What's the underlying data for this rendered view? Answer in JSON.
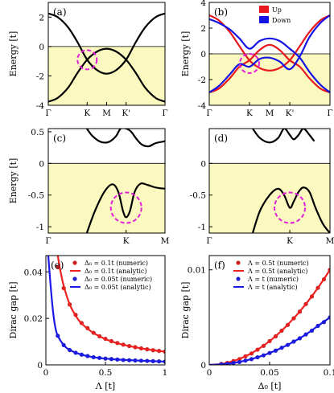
{
  "chart_data": [
    {
      "panel": "(a)",
      "type": "line",
      "ylabel": "Energy [t]",
      "xticks": [
        "Γ",
        "K",
        "M",
        "K'",
        "Γ"
      ],
      "yticks": [
        "2",
        "0",
        "-2",
        "-4"
      ],
      "ylim": [
        -4,
        3
      ],
      "xlim": [
        0,
        1
      ],
      "xtick_pos": [
        0,
        0.333,
        0.5,
        0.667,
        1
      ],
      "fermi_level": 0,
      "shade_below_fermi": true,
      "circle": {
        "x": 0.333,
        "y": -0.9
      },
      "series": [
        {
          "color": "#000000",
          "x": [
            0,
            0.08,
            0.17,
            0.25,
            0.333,
            0.417,
            0.5,
            0.583,
            0.667,
            0.75,
            0.83,
            0.92,
            1
          ],
          "y": [
            2.25,
            2.0,
            1.3,
            0.3,
            -0.9,
            -1.6,
            -1.85,
            -1.6,
            -0.9,
            0.3,
            1.3,
            2.0,
            2.25
          ]
        },
        {
          "color": "#000000",
          "x": [
            0,
            0.08,
            0.17,
            0.25,
            0.333,
            0.417,
            0.5,
            0.583,
            0.667,
            0.75,
            0.83,
            0.92,
            1
          ],
          "y": [
            -3.75,
            -3.5,
            -2.8,
            -1.8,
            -0.9,
            -0.35,
            -0.15,
            -0.35,
            -0.9,
            -1.8,
            -2.8,
            -3.5,
            -3.75
          ]
        }
      ]
    },
    {
      "panel": "(b)",
      "type": "line",
      "ylabel": "Energy [t]",
      "xticks": [
        "Γ",
        "K",
        "M",
        "K'",
        "Γ"
      ],
      "yticks": [
        "4",
        "2",
        "0",
        "-2",
        "-4"
      ],
      "ylim": [
        -4,
        4
      ],
      "xlim": [
        0,
        1
      ],
      "xtick_pos": [
        0,
        0.333,
        0.5,
        0.667,
        1
      ],
      "fermi_level": 0,
      "shade_below_fermi": true,
      "circle": {
        "x": 0.333,
        "y": -0.75
      },
      "legend": [
        {
          "name": "Up",
          "color": "#e8191c"
        },
        {
          "name": "Down",
          "color": "#1414e6"
        }
      ],
      "series": [
        {
          "color": "#e8191c",
          "x": [
            0,
            0.08,
            0.17,
            0.25,
            0.333,
            0.417,
            0.5,
            0.583,
            0.667,
            0.75,
            0.83,
            0.92,
            1
          ],
          "y": [
            3.0,
            2.6,
            1.7,
            0.6,
            -0.5,
            -1.1,
            -1.3,
            -1.1,
            -0.5,
            0.6,
            1.7,
            2.6,
            3.0
          ]
        },
        {
          "color": "#e8191c",
          "x": [
            0,
            0.08,
            0.17,
            0.25,
            0.333,
            0.417,
            0.5,
            0.583,
            0.667,
            0.75,
            0.83,
            0.92,
            1
          ],
          "y": [
            -3.0,
            -2.7,
            -1.9,
            -1.0,
            -0.5,
            0.3,
            0.7,
            0.3,
            -0.5,
            -1.0,
            -1.9,
            -2.7,
            -3.0
          ]
        },
        {
          "color": "#1414e6",
          "x": [
            0,
            0.08,
            0.17,
            0.25,
            0.333,
            0.417,
            0.5,
            0.583,
            0.667,
            0.75,
            0.83,
            0.92,
            1
          ],
          "y": [
            2.7,
            2.4,
            1.9,
            1.2,
            0.4,
            1.0,
            1.2,
            1.0,
            0.4,
            -0.3,
            -1.4,
            -2.4,
            -3.0
          ]
        },
        {
          "color": "#1414e6",
          "x": [
            0,
            0.08,
            0.17,
            0.25,
            0.333,
            0.417,
            0.5,
            0.583,
            0.667,
            0.75,
            0.83,
            0.92,
            1
          ],
          "y": [
            -3.0,
            -2.5,
            -1.6,
            -0.8,
            -1.0,
            -0.4,
            -0.3,
            -0.6,
            -1.2,
            -0.2,
            1.3,
            2.4,
            3.0
          ]
        }
      ]
    },
    {
      "panel": "(c)",
      "type": "line",
      "ylabel": "Energy [t]",
      "xticks": [
        "Γ",
        "K",
        "M"
      ],
      "yticks": [
        "0.5",
        "0",
        "-0.5",
        "-1"
      ],
      "ylim": [
        -1.1,
        0.55
      ],
      "xlim": [
        0,
        1
      ],
      "xtick_pos": [
        0,
        0.667,
        1
      ],
      "fermi_level": 0,
      "shade_below_fermi": true,
      "circle": {
        "x": 0.667,
        "y": -0.7
      },
      "series": [
        {
          "color": "#000000",
          "x": [
            0.33,
            0.38,
            0.45,
            0.52,
            0.58,
            0.62,
            0.667,
            0.71,
            0.75,
            0.8,
            0.86,
            0.92,
            1
          ],
          "y": [
            0.55,
            0.43,
            0.34,
            0.34,
            0.43,
            0.55,
            0.55,
            0.5,
            0.4,
            0.3,
            0.27,
            0.32,
            0.35
          ]
        },
        {
          "color": "#000000",
          "x": [
            0.33,
            0.4,
            0.48,
            0.55,
            0.6,
            0.64,
            0.667,
            0.7,
            0.74,
            0.79,
            0.85,
            0.92,
            1
          ],
          "y": [
            -1.1,
            -0.75,
            -0.45,
            -0.33,
            -0.45,
            -0.75,
            -0.85,
            -0.75,
            -0.45,
            -0.32,
            -0.34,
            -0.38,
            -0.4
          ]
        }
      ]
    },
    {
      "panel": "(d)",
      "type": "line",
      "ylabel": "",
      "xticks": [
        "Γ",
        "K",
        "M"
      ],
      "yticks": [
        "0",
        "-0.5",
        "-1"
      ],
      "ylim": [
        -1.1,
        0.55
      ],
      "xlim": [
        0,
        1
      ],
      "xtick_pos": [
        0,
        0.667,
        1
      ],
      "fermi_level": 0,
      "shade_below_fermi": true,
      "circle": {
        "x": 0.667,
        "y": -0.7
      },
      "series": [
        {
          "color": "#000000",
          "x": [
            0.36,
            0.42,
            0.5,
            0.57,
            0.62,
            0.667,
            0.7,
            0.74,
            0.78,
            0.83,
            0.87
          ],
          "y": [
            0.55,
            0.4,
            0.33,
            0.4,
            0.55,
            0.45,
            0.38,
            0.45,
            0.55,
            0.45,
            0.35
          ]
        },
        {
          "color": "#000000",
          "x": [
            0.36,
            0.42,
            0.5,
            0.57,
            0.62,
            0.667,
            0.7,
            0.74,
            0.78,
            0.83,
            0.88,
            0.94,
            1
          ],
          "y": [
            -1.1,
            -0.75,
            -0.5,
            -0.4,
            -0.5,
            -0.7,
            -0.6,
            -0.45,
            -0.38,
            -0.45,
            -0.7,
            -0.95,
            -1.1
          ]
        }
      ]
    },
    {
      "panel": "(e)",
      "type": "scatter",
      "xlabel": "Λ [t]",
      "ylabel": "Dirac gap [t]",
      "xlim": [
        0,
        1
      ],
      "ylim": [
        0,
        0.047
      ],
      "xticks": [
        "0",
        "0.5",
        "1"
      ],
      "yticks": [
        "0",
        "0.02",
        "0.04"
      ],
      "legend": [
        {
          "name": "Δ₀ = 0.1t (numeric)",
          "color": "#cc2222",
          "kind": "dot"
        },
        {
          "name": "Δ₀ = 0.1t (analytic)",
          "color": "#ee2020",
          "kind": "line"
        },
        {
          "name": "Δ₀ = 0.05t (numeric)",
          "color": "#2222cc",
          "kind": "dot"
        },
        {
          "name": "Δ₀ = 0.05t (analytic)",
          "color": "#1a1ae6",
          "kind": "line"
        }
      ],
      "series": [
        {
          "name": "Δ₀ = 0.1t (numeric)",
          "color": "#cc2222",
          "kind": "dot",
          "x": [
            0.1,
            0.15,
            0.2,
            0.25,
            0.3,
            0.35,
            0.4,
            0.45,
            0.5,
            0.55,
            0.6,
            0.65,
            0.7,
            0.75,
            0.8,
            0.85,
            0.9,
            0.95,
            1.0
          ],
          "y": [
            0.042,
            0.033,
            0.026,
            0.0215,
            0.018,
            0.0158,
            0.0138,
            0.0123,
            0.0112,
            0.0102,
            0.0094,
            0.0087,
            0.0081,
            0.0076,
            0.0071,
            0.0067,
            0.0063,
            0.006,
            0.0057
          ]
        },
        {
          "name": "Δ₀ = 0.1t (analytic)",
          "color": "#ee2020",
          "kind": "line",
          "x": [
            0.1,
            0.12,
            0.15,
            0.2,
            0.25,
            0.3,
            0.4,
            0.5,
            0.6,
            0.7,
            0.8,
            0.9,
            1.0
          ],
          "y": [
            0.047,
            0.041,
            0.034,
            0.026,
            0.0212,
            0.0178,
            0.0137,
            0.0111,
            0.0093,
            0.0081,
            0.0071,
            0.0063,
            0.0057
          ]
        },
        {
          "name": "Δ₀ = 0.05t (numeric)",
          "color": "#2222cc",
          "kind": "dot",
          "x": [
            0.1,
            0.15,
            0.2,
            0.25,
            0.3,
            0.35,
            0.4,
            0.45,
            0.5,
            0.55,
            0.6,
            0.65,
            0.7,
            0.75,
            0.8,
            0.85,
            0.9,
            0.95,
            1.0
          ],
          "y": [
            0.0125,
            0.0085,
            0.0064,
            0.0052,
            0.0044,
            0.0038,
            0.0033,
            0.003,
            0.0027,
            0.0025,
            0.0023,
            0.0021,
            0.002,
            0.0019,
            0.0018,
            0.0017,
            0.0016,
            0.0015,
            0.0014
          ]
        },
        {
          "name": "Δ₀ = 0.05t (analytic)",
          "color": "#1a1ae6",
          "kind": "line",
          "x": [
            0.02,
            0.04,
            0.06,
            0.08,
            0.1,
            0.15,
            0.2,
            0.3,
            0.4,
            0.5,
            0.6,
            0.8,
            1.0
          ],
          "y": [
            0.047,
            0.034,
            0.023,
            0.016,
            0.0125,
            0.0085,
            0.0064,
            0.0044,
            0.0033,
            0.0027,
            0.0023,
            0.0018,
            0.0014
          ]
        }
      ]
    },
    {
      "panel": "(f)",
      "type": "scatter",
      "xlabel": "Δ₀ [t]",
      "ylabel": "Dirac gap [t]",
      "xlim": [
        0,
        0.1
      ],
      "ylim": [
        0,
        0.0115
      ],
      "xticks": [
        "0",
        "0.05",
        "0.1"
      ],
      "yticks": [
        "0",
        "0.01"
      ],
      "legend": [
        {
          "name": "Λ = 0.5t (numeric)",
          "color": "#cc2222",
          "kind": "dot"
        },
        {
          "name": "Λ = 0.5t (analytic)",
          "color": "#ee2020",
          "kind": "line"
        },
        {
          "name": "Λ = t (numeric)",
          "color": "#2222cc",
          "kind": "dot"
        },
        {
          "name": "Λ = t (analytic)",
          "color": "#1a1ae6",
          "kind": "line"
        }
      ],
      "series": [
        {
          "name": "Λ = 0.5t (numeric)",
          "color": "#cc2222",
          "kind": "dot",
          "x": [
            0.01,
            0.015,
            0.02,
            0.025,
            0.03,
            0.035,
            0.04,
            0.045,
            0.05,
            0.055,
            0.06,
            0.065,
            0.07,
            0.075,
            0.08,
            0.085,
            0.09,
            0.095,
            0.1
          ],
          "y": [
            0.0001,
            0.0002,
            0.0004,
            0.0006,
            0.0009,
            0.0012,
            0.0016,
            0.002,
            0.0025,
            0.003,
            0.0036,
            0.0042,
            0.0049,
            0.0056,
            0.0064,
            0.0072,
            0.0081,
            0.009,
            0.01
          ]
        },
        {
          "name": "Λ = 0.5t (analytic)",
          "color": "#ee2020",
          "kind": "line",
          "x": [
            0,
            0.01,
            0.02,
            0.03,
            0.04,
            0.05,
            0.06,
            0.07,
            0.08,
            0.09,
            0.1
          ],
          "y": [
            0,
            0.0001,
            0.0004,
            0.0009,
            0.0016,
            0.0025,
            0.0036,
            0.0049,
            0.0064,
            0.0081,
            0.01
          ]
        },
        {
          "name": "Λ = t (numeric)",
          "color": "#2222cc",
          "kind": "dot",
          "x": [
            0.01,
            0.015,
            0.02,
            0.025,
            0.03,
            0.035,
            0.04,
            0.045,
            0.05,
            0.055,
            0.06,
            0.065,
            0.07,
            0.075,
            0.08,
            0.085,
            0.09,
            0.095,
            0.1
          ],
          "y": [
            5e-05,
            0.0001,
            0.0002,
            0.0003,
            0.00045,
            0.0006,
            0.0008,
            0.001,
            0.00125,
            0.0015,
            0.0018,
            0.0021,
            0.00245,
            0.0028,
            0.0032,
            0.0036,
            0.0041,
            0.0045,
            0.005
          ]
        },
        {
          "name": "Λ = t (analytic)",
          "color": "#1a1ae6",
          "kind": "line",
          "x": [
            0,
            0.01,
            0.02,
            0.03,
            0.04,
            0.05,
            0.06,
            0.07,
            0.08,
            0.09,
            0.1
          ],
          "y": [
            0,
            5e-05,
            0.0002,
            0.00045,
            0.0008,
            0.00125,
            0.0018,
            0.00245,
            0.0032,
            0.0041,
            0.005
          ]
        }
      ]
    }
  ],
  "style": {
    "shade_color": "#fbf8c0",
    "circle_color": "#e020d8"
  }
}
